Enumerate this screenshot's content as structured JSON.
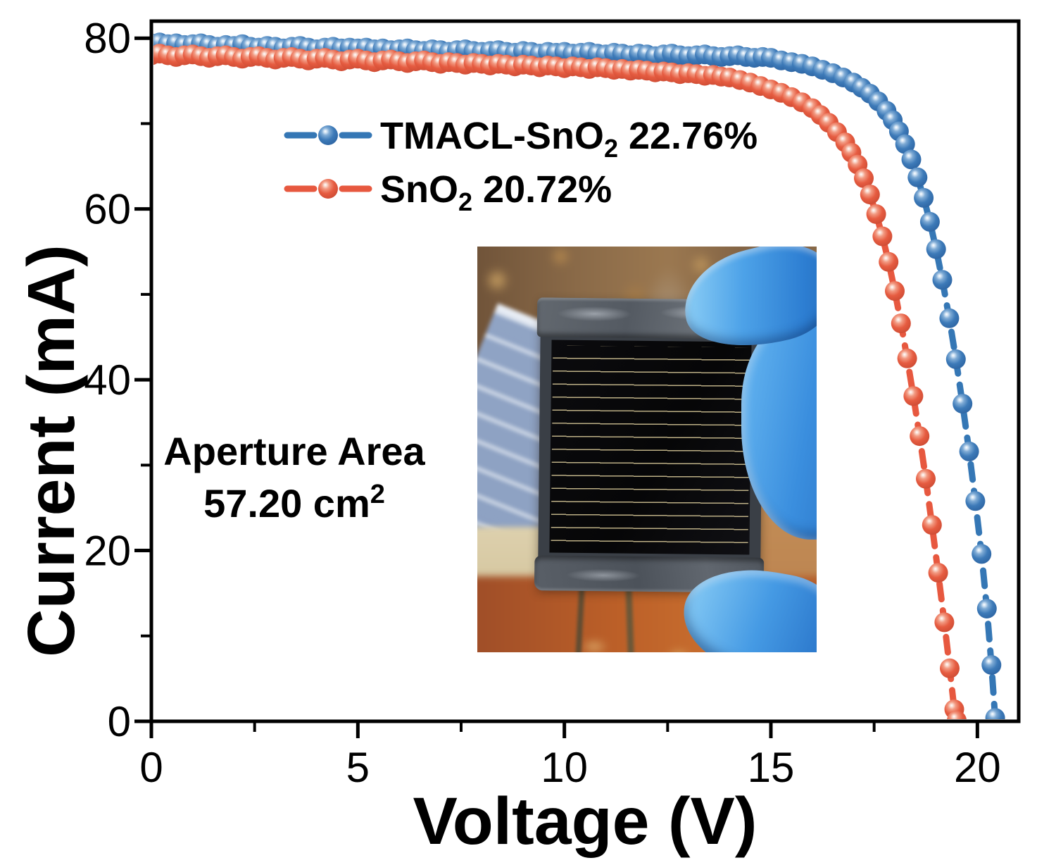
{
  "figure": {
    "x_axis": {
      "title": "Voltage (V)",
      "ticks": [
        0,
        5,
        10,
        15,
        20
      ],
      "minor_ticks": [
        2.5,
        7.5,
        12.5,
        17.5
      ],
      "range": [
        0,
        21
      ]
    },
    "y_axis": {
      "title": "Current (mA)",
      "ticks": [
        0,
        20,
        40,
        60,
        80
      ],
      "minor_ticks": [
        10,
        30,
        50,
        70
      ],
      "range": [
        0,
        82
      ]
    },
    "legend": [
      {
        "label_prefix": "TMACL-SnO",
        "label_sub": "2",
        "label_suffix": " 22.76%",
        "color": "#3577b5"
      },
      {
        "label_prefix": "SnO",
        "label_sub": "2",
        "label_suffix": " 20.72%",
        "color": "#e7583f"
      }
    ],
    "annotation": {
      "line1": "Aperture Area",
      "line2_main": "57.20 cm",
      "line2_sup": "2"
    }
  },
  "chart_data": {
    "type": "line",
    "title": "",
    "xlabel": "Voltage (V)",
    "ylabel": "Current (mA)",
    "xlim": [
      0,
      21
    ],
    "ylim": [
      0,
      82
    ],
    "grid": false,
    "legend_position": "upper-left-inside",
    "series": [
      {
        "name": "TMACL-SnO2 22.76%",
        "color": "#3577b5",
        "ball_gradient": [
          "#ffffff",
          "#d3e4f4",
          "#7fabd5",
          "#3d7ab8",
          "#295f9d"
        ],
        "points": [
          [
            0.0,
            79.4
          ],
          [
            0.2,
            79.5
          ],
          [
            0.4,
            79.3
          ],
          [
            0.6,
            79.4
          ],
          [
            0.8,
            79.2
          ],
          [
            1.0,
            79.3
          ],
          [
            1.2,
            79.4
          ],
          [
            1.4,
            79.2
          ],
          [
            1.6,
            79.0
          ],
          [
            1.8,
            79.2
          ],
          [
            2.0,
            79.1
          ],
          [
            2.2,
            79.3
          ],
          [
            2.4,
            79.0
          ],
          [
            2.6,
            78.9
          ],
          [
            2.8,
            79.1
          ],
          [
            3.0,
            79.0
          ],
          [
            3.2,
            78.8
          ],
          [
            3.4,
            79.0
          ],
          [
            3.6,
            79.1
          ],
          [
            3.8,
            78.9
          ],
          [
            4.0,
            78.7
          ],
          [
            4.2,
            78.9
          ],
          [
            4.4,
            79.0
          ],
          [
            4.6,
            78.8
          ],
          [
            4.8,
            78.9
          ],
          [
            5.0,
            78.8
          ],
          [
            5.2,
            78.9
          ],
          [
            5.4,
            78.7
          ],
          [
            5.6,
            78.8
          ],
          [
            5.8,
            78.6
          ],
          [
            6.0,
            78.7
          ],
          [
            6.2,
            78.8
          ],
          [
            6.4,
            78.6
          ],
          [
            6.6,
            78.5
          ],
          [
            6.8,
            78.7
          ],
          [
            7.0,
            78.6
          ],
          [
            7.2,
            78.4
          ],
          [
            7.4,
            78.6
          ],
          [
            7.6,
            78.7
          ],
          [
            7.8,
            78.5
          ],
          [
            8.0,
            78.4
          ],
          [
            8.2,
            78.5
          ],
          [
            8.4,
            78.6
          ],
          [
            8.6,
            78.4
          ],
          [
            8.8,
            78.3
          ],
          [
            9.0,
            78.5
          ],
          [
            9.2,
            78.4
          ],
          [
            9.4,
            78.2
          ],
          [
            9.6,
            78.4
          ],
          [
            9.8,
            78.3
          ],
          [
            10.0,
            78.4
          ],
          [
            10.2,
            78.2
          ],
          [
            10.4,
            78.3
          ],
          [
            10.6,
            78.4
          ],
          [
            10.8,
            78.2
          ],
          [
            11.0,
            78.1
          ],
          [
            11.2,
            78.3
          ],
          [
            11.4,
            78.2
          ],
          [
            11.6,
            78.0
          ],
          [
            11.8,
            78.2
          ],
          [
            12.0,
            78.1
          ],
          [
            12.2,
            77.9
          ],
          [
            12.4,
            78.1
          ],
          [
            12.6,
            78.2
          ],
          [
            12.8,
            78.0
          ],
          [
            13.0,
            77.9
          ],
          [
            13.2,
            78.0
          ],
          [
            13.4,
            78.1
          ],
          [
            13.6,
            77.9
          ],
          [
            13.8,
            77.8
          ],
          [
            14.0,
            77.9
          ],
          [
            14.2,
            78.0
          ],
          [
            14.4,
            77.8
          ],
          [
            14.6,
            77.7
          ],
          [
            14.8,
            77.8
          ],
          [
            15.0,
            77.7
          ],
          [
            15.25,
            77.4
          ],
          [
            15.5,
            77.2
          ],
          [
            15.75,
            77.0
          ],
          [
            16.0,
            76.7
          ],
          [
            16.25,
            76.3
          ],
          [
            16.5,
            75.9
          ],
          [
            16.75,
            75.4
          ],
          [
            17.0,
            74.8
          ],
          [
            17.2,
            74.2
          ],
          [
            17.4,
            73.5
          ],
          [
            17.6,
            72.6
          ],
          [
            17.8,
            71.5
          ],
          [
            17.95,
            70.4
          ],
          [
            18.1,
            69.1
          ],
          [
            18.25,
            67.6
          ],
          [
            18.4,
            65.8
          ],
          [
            18.55,
            63.7
          ],
          [
            18.7,
            61.3
          ],
          [
            18.85,
            58.5
          ],
          [
            19.0,
            55.3
          ],
          [
            19.15,
            51.7
          ],
          [
            19.32,
            47.2
          ],
          [
            19.48,
            42.4
          ],
          [
            19.64,
            37.2
          ],
          [
            19.8,
            31.6
          ],
          [
            19.95,
            25.8
          ],
          [
            20.1,
            19.6
          ],
          [
            20.23,
            13.2
          ],
          [
            20.34,
            6.6
          ],
          [
            20.43,
            0.4
          ]
        ]
      },
      {
        "name": "SnO2 20.72%",
        "color": "#e7583f",
        "ball_gradient": [
          "#ffffff",
          "#fadcd1",
          "#f29a82",
          "#e65c41",
          "#c74730"
        ],
        "points": [
          [
            0.0,
            78.0
          ],
          [
            0.2,
            78.2
          ],
          [
            0.4,
            78.0
          ],
          [
            0.6,
            77.8
          ],
          [
            0.8,
            78.0
          ],
          [
            1.0,
            78.1
          ],
          [
            1.2,
            77.9
          ],
          [
            1.4,
            77.7
          ],
          [
            1.6,
            77.9
          ],
          [
            1.8,
            78.0
          ],
          [
            2.0,
            77.8
          ],
          [
            2.2,
            77.6
          ],
          [
            2.4,
            77.8
          ],
          [
            2.6,
            77.9
          ],
          [
            2.8,
            77.7
          ],
          [
            3.0,
            77.5
          ],
          [
            3.2,
            77.7
          ],
          [
            3.4,
            77.8
          ],
          [
            3.6,
            77.6
          ],
          [
            3.8,
            77.4
          ],
          [
            4.0,
            77.6
          ],
          [
            4.2,
            77.7
          ],
          [
            4.4,
            77.5
          ],
          [
            4.6,
            77.3
          ],
          [
            4.8,
            77.5
          ],
          [
            5.0,
            77.6
          ],
          [
            5.2,
            77.4
          ],
          [
            5.4,
            77.2
          ],
          [
            5.6,
            77.4
          ],
          [
            5.8,
            77.5
          ],
          [
            6.0,
            77.3
          ],
          [
            6.2,
            77.1
          ],
          [
            6.4,
            77.3
          ],
          [
            6.6,
            77.4
          ],
          [
            6.8,
            77.2
          ],
          [
            7.0,
            77.0
          ],
          [
            7.2,
            77.2
          ],
          [
            7.4,
            77.1
          ],
          [
            7.6,
            76.9
          ],
          [
            7.8,
            77.1
          ],
          [
            8.0,
            77.0
          ],
          [
            8.2,
            76.8
          ],
          [
            8.4,
            77.0
          ],
          [
            8.6,
            76.9
          ],
          [
            8.8,
            76.7
          ],
          [
            9.0,
            76.9
          ],
          [
            9.2,
            76.8
          ],
          [
            9.4,
            76.6
          ],
          [
            9.6,
            76.8
          ],
          [
            9.8,
            76.7
          ],
          [
            10.0,
            76.5
          ],
          [
            10.2,
            76.7
          ],
          [
            10.4,
            76.6
          ],
          [
            10.6,
            76.4
          ],
          [
            10.8,
            76.6
          ],
          [
            11.0,
            76.5
          ],
          [
            11.2,
            76.3
          ],
          [
            11.4,
            76.4
          ],
          [
            11.6,
            76.2
          ],
          [
            11.8,
            76.3
          ],
          [
            12.0,
            76.2
          ],
          [
            12.2,
            76.0
          ],
          [
            12.4,
            76.1
          ],
          [
            12.6,
            76.0
          ],
          [
            12.8,
            75.8
          ],
          [
            13.0,
            75.9
          ],
          [
            13.2,
            75.8
          ],
          [
            13.4,
            75.6
          ],
          [
            13.6,
            75.7
          ],
          [
            13.8,
            75.5
          ],
          [
            14.0,
            75.4
          ],
          [
            14.25,
            75.1
          ],
          [
            14.5,
            74.8
          ],
          [
            14.75,
            74.4
          ],
          [
            15.0,
            74.0
          ],
          [
            15.25,
            73.6
          ],
          [
            15.5,
            73.1
          ],
          [
            15.75,
            72.5
          ],
          [
            16.0,
            71.8
          ],
          [
            16.2,
            71.0
          ],
          [
            16.4,
            70.1
          ],
          [
            16.6,
            69.0
          ],
          [
            16.8,
            67.8
          ],
          [
            16.95,
            66.6
          ],
          [
            17.1,
            65.2
          ],
          [
            17.25,
            63.6
          ],
          [
            17.4,
            61.7
          ],
          [
            17.55,
            59.4
          ],
          [
            17.7,
            56.8
          ],
          [
            17.85,
            53.8
          ],
          [
            18.0,
            50.4
          ],
          [
            18.15,
            46.6
          ],
          [
            18.3,
            42.5
          ],
          [
            18.45,
            38.1
          ],
          [
            18.6,
            33.4
          ],
          [
            18.75,
            28.4
          ],
          [
            18.9,
            23.0
          ],
          [
            19.05,
            17.4
          ],
          [
            19.2,
            11.6
          ],
          [
            19.33,
            6.2
          ],
          [
            19.44,
            1.4
          ],
          [
            19.5,
            0.1
          ]
        ]
      }
    ]
  }
}
